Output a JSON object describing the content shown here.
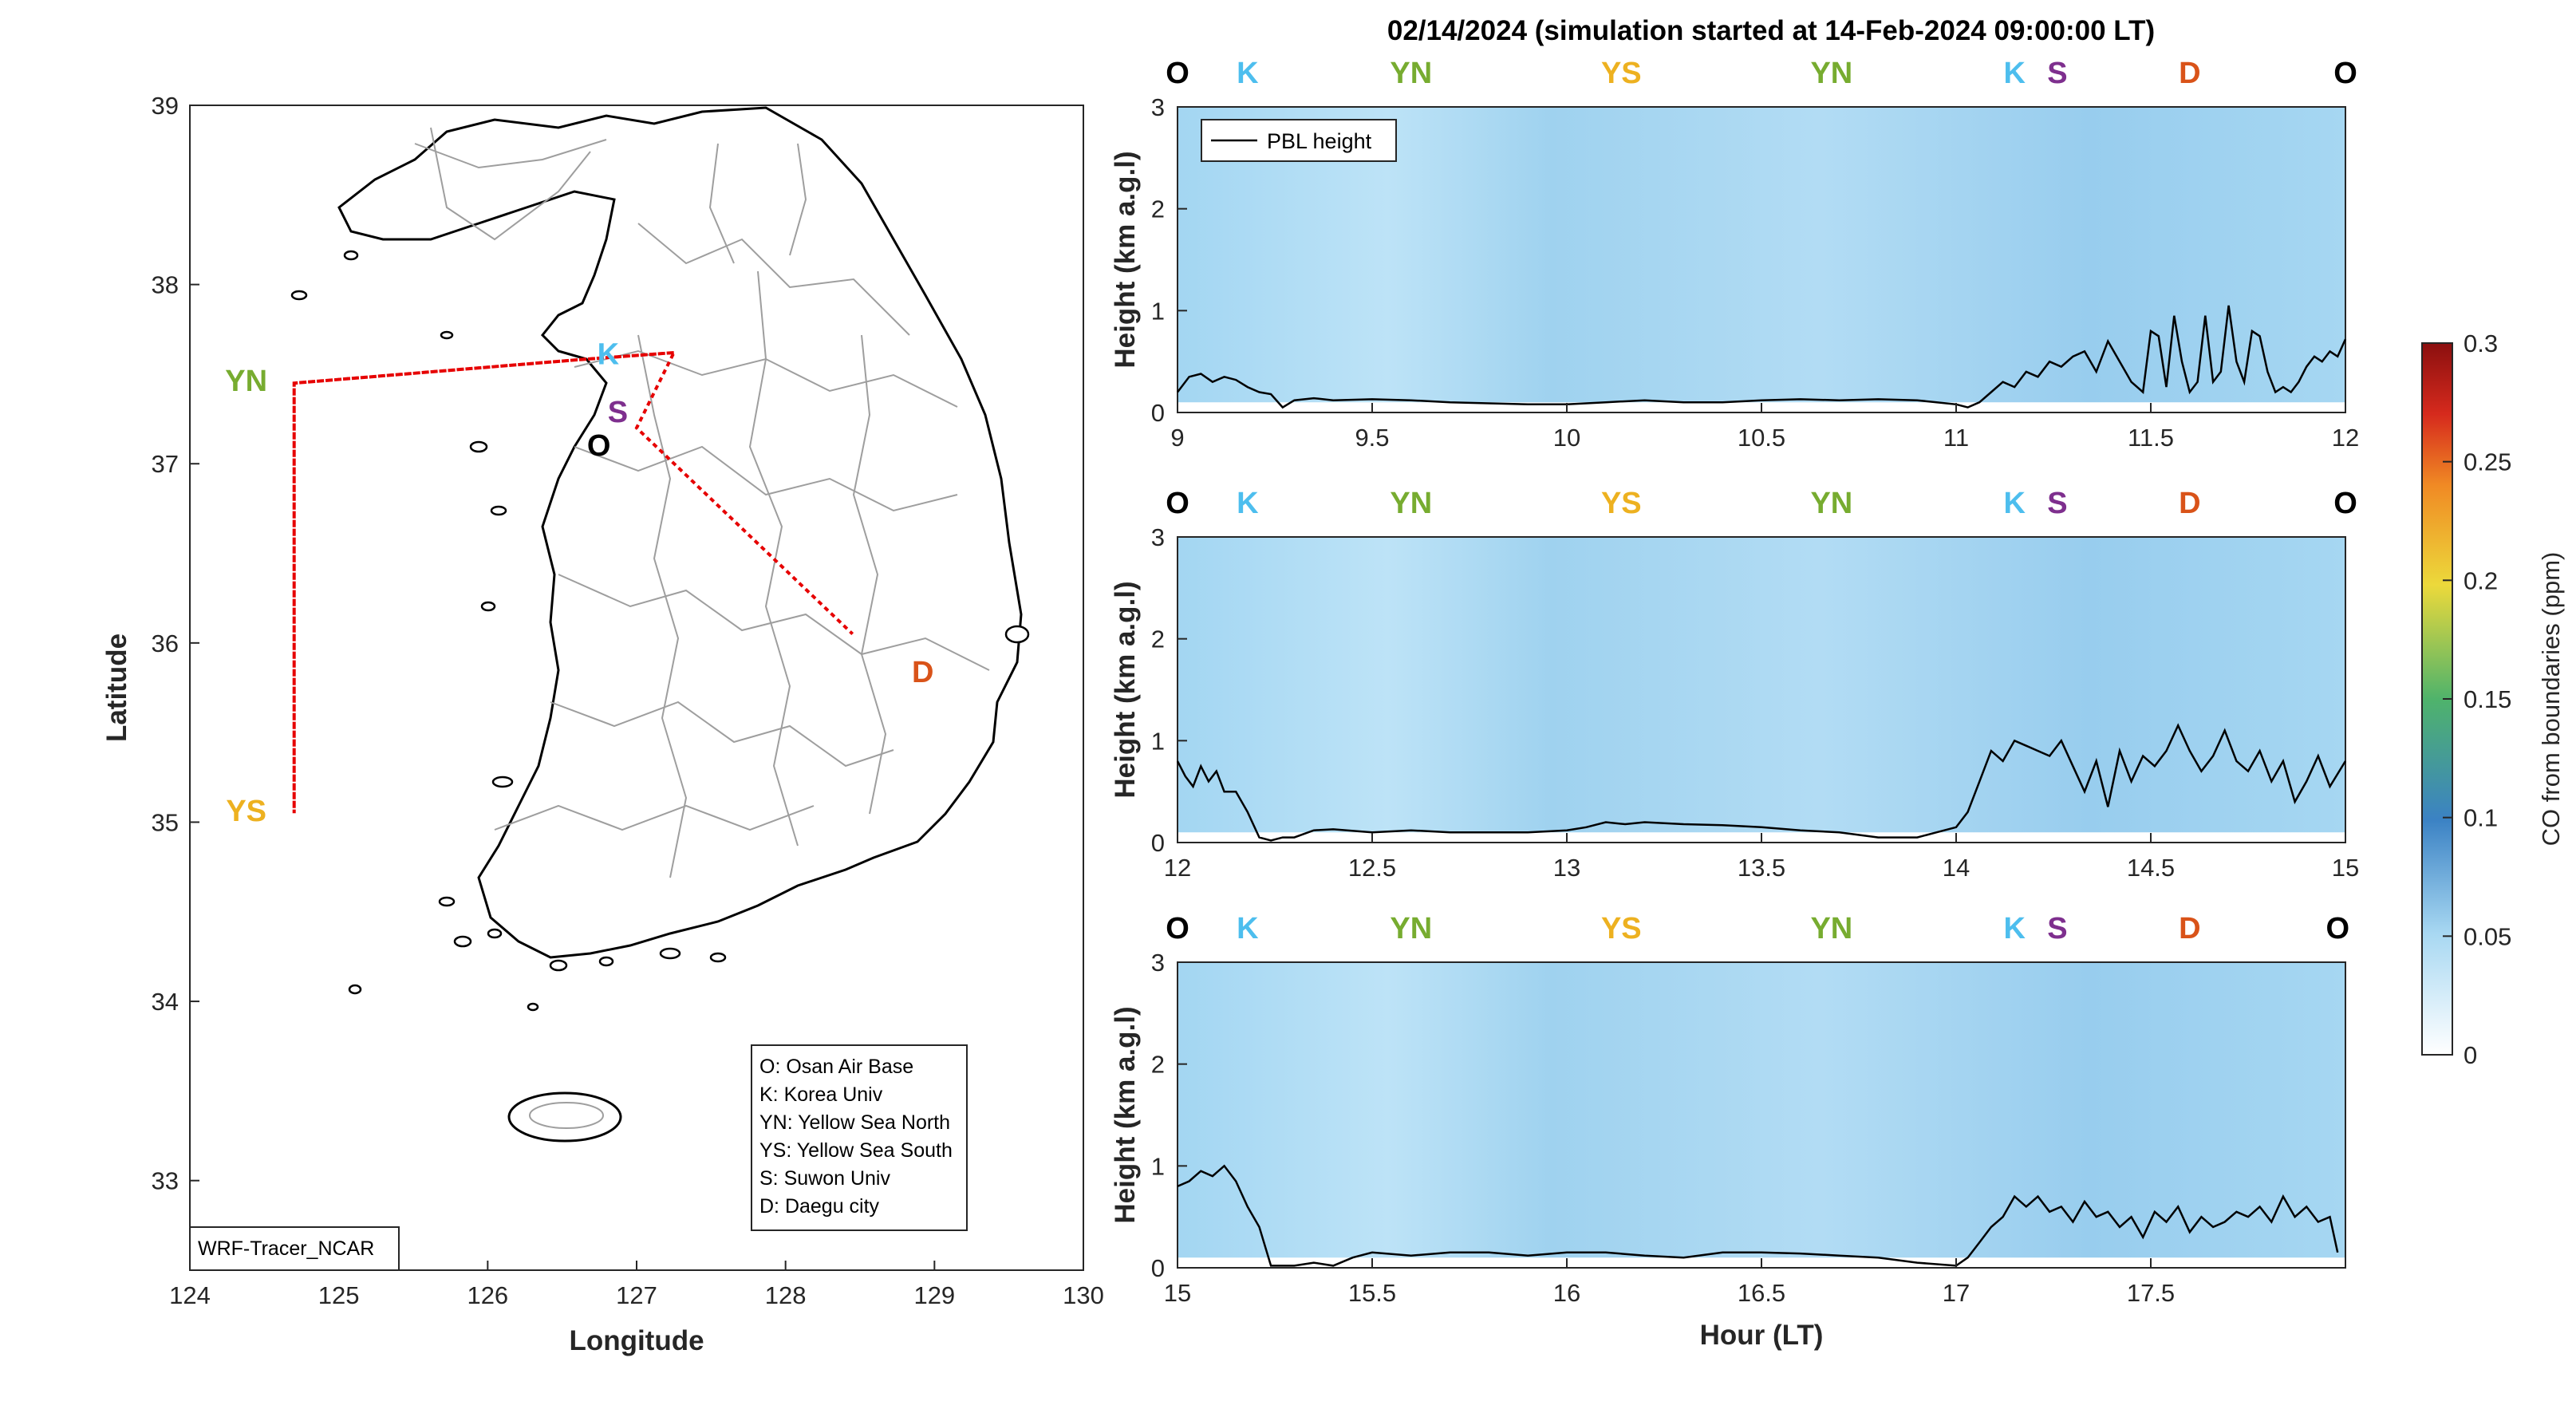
{
  "colors": {
    "O": "#000000",
    "K": "#4DBEEE",
    "YN": "#77AC30",
    "YS": "#EDB120",
    "S": "#7E2F8E",
    "D": "#D95319",
    "route": "#E60000",
    "field": "#A8D8F2",
    "pbl": "#000000"
  },
  "chart_data": [
    {
      "type": "map",
      "xlabel": "Longitude",
      "ylabel": "Latitude",
      "xlim": [
        124,
        130
      ],
      "ylim": [
        32.5,
        39
      ],
      "xticks": [
        "124",
        "125",
        "126",
        "127",
        "128",
        "129",
        "130"
      ],
      "yticks": [
        "33",
        "34",
        "35",
        "36",
        "37",
        "38",
        "39"
      ],
      "sites": [
        {
          "code": "O",
          "name": "Osan Air Base",
          "lon": 126.8,
          "lat": 37.09
        },
        {
          "code": "K",
          "name": "Korea Univ",
          "lon": 127.05,
          "lat": 37.59
        },
        {
          "code": "YN",
          "name": "Yellow Sea North",
          "lon": 124.7,
          "lat": 37.45
        },
        {
          "code": "YS",
          "name": "Yellow Sea South",
          "lon": 124.7,
          "lat": 35.05
        },
        {
          "code": "S",
          "name": "Suwon Univ",
          "lon": 126.97,
          "lat": 37.21
        },
        {
          "code": "D",
          "name": "Daegu city",
          "lon": 128.6,
          "lat": 35.87
        }
      ],
      "route": [
        [
          127.25,
          37.62
        ],
        [
          126.6,
          37.58
        ],
        [
          124.7,
          37.45
        ],
        [
          124.7,
          35.05
        ],
        [
          124.7,
          37.45
        ],
        [
          126.6,
          37.58
        ],
        [
          127.25,
          37.62
        ],
        [
          127.0,
          37.2
        ],
        [
          128.45,
          36.05
        ]
      ],
      "legend_lines": [
        "O: Osan Air Base",
        "K: Korea Univ",
        "YN: Yellow Sea North",
        "YS: Yellow Sea South",
        "S: Suwon Univ",
        "D: Daegu city"
      ],
      "source_label": "WRF-Tracer_NCAR"
    },
    {
      "type": "heatmap",
      "xlim": [
        9,
        12
      ],
      "ylim": [
        0,
        3
      ],
      "xticks": [
        "9",
        "9.5",
        "10",
        "10.5",
        "11",
        "11.5",
        "12"
      ],
      "ylabel": "Height (km a.g.l)",
      "route_labels": [
        {
          "label": "O",
          "x": 9.0
        },
        {
          "label": "K",
          "x": 9.18
        },
        {
          "label": "YN",
          "x": 9.6
        },
        {
          "label": "YS",
          "x": 10.14
        },
        {
          "label": "YN",
          "x": 10.68
        },
        {
          "label": "K",
          "x": 11.15
        },
        {
          "label": "S",
          "x": 11.26
        },
        {
          "label": "D",
          "x": 11.6
        },
        {
          "label": "O",
          "x": 12.0
        }
      ],
      "series": [
        {
          "name": "PBL height",
          "x": [
            9,
            9.03,
            9.06,
            9.09,
            9.12,
            9.15,
            9.18,
            9.21,
            9.24,
            9.27,
            9.3,
            9.35,
            9.4,
            9.5,
            9.6,
            9.7,
            9.8,
            9.9,
            10,
            10.1,
            10.2,
            10.3,
            10.4,
            10.5,
            10.6,
            10.7,
            10.8,
            10.9,
            10.95,
            11,
            11.03,
            11.06,
            11.09,
            11.12,
            11.15,
            11.18,
            11.21,
            11.24,
            11.27,
            11.3,
            11.33,
            11.36,
            11.39,
            11.42,
            11.45,
            11.48,
            11.5,
            11.52,
            11.54,
            11.56,
            11.58,
            11.6,
            11.62,
            11.64,
            11.66,
            11.68,
            11.7,
            11.72,
            11.74,
            11.76,
            11.78,
            11.8,
            11.82,
            11.84,
            11.86,
            11.88,
            11.9,
            11.92,
            11.94,
            11.96,
            11.98,
            12
          ],
          "y": [
            0.2,
            0.35,
            0.38,
            0.3,
            0.35,
            0.32,
            0.25,
            0.2,
            0.18,
            0.05,
            0.12,
            0.14,
            0.12,
            0.13,
            0.12,
            0.1,
            0.09,
            0.08,
            0.08,
            0.1,
            0.12,
            0.1,
            0.1,
            0.12,
            0.13,
            0.12,
            0.13,
            0.12,
            0.1,
            0.08,
            0.05,
            0.1,
            0.2,
            0.3,
            0.25,
            0.4,
            0.35,
            0.5,
            0.45,
            0.55,
            0.6,
            0.4,
            0.7,
            0.5,
            0.3,
            0.2,
            0.8,
            0.75,
            0.25,
            0.95,
            0.5,
            0.2,
            0.3,
            0.95,
            0.3,
            0.4,
            1.05,
            0.5,
            0.3,
            0.8,
            0.75,
            0.4,
            0.2,
            0.25,
            0.2,
            0.3,
            0.45,
            0.55,
            0.5,
            0.6,
            0.55,
            0.72
          ]
        }
      ]
    },
    {
      "type": "heatmap",
      "xlim": [
        12,
        15
      ],
      "ylim": [
        0,
        3
      ],
      "xticks": [
        "12",
        "12.5",
        "13",
        "13.5",
        "14",
        "14.5",
        "15"
      ],
      "ylabel": "Height (km a.g.l)",
      "route_labels": [
        {
          "label": "O",
          "x": 12.0
        },
        {
          "label": "K",
          "x": 12.18
        },
        {
          "label": "YN",
          "x": 12.6
        },
        {
          "label": "YS",
          "x": 13.14
        },
        {
          "label": "YN",
          "x": 13.68
        },
        {
          "label": "K",
          "x": 14.15
        },
        {
          "label": "S",
          "x": 14.26
        },
        {
          "label": "D",
          "x": 14.6
        },
        {
          "label": "O",
          "x": 15.0
        }
      ],
      "series": [
        {
          "name": "PBL height",
          "x": [
            12,
            12.02,
            12.04,
            12.06,
            12.08,
            12.1,
            12.12,
            12.15,
            12.18,
            12.21,
            12.24,
            12.27,
            12.3,
            12.35,
            12.4,
            12.5,
            12.6,
            12.7,
            12.8,
            12.9,
            13,
            13.05,
            13.1,
            13.15,
            13.2,
            13.3,
            13.4,
            13.5,
            13.6,
            13.7,
            13.8,
            13.9,
            13.95,
            14,
            14.03,
            14.06,
            14.09,
            14.12,
            14.15,
            14.18,
            14.21,
            14.24,
            14.27,
            14.3,
            14.33,
            14.36,
            14.39,
            14.42,
            14.45,
            14.48,
            14.51,
            14.54,
            14.57,
            14.6,
            14.63,
            14.66,
            14.69,
            14.72,
            14.75,
            14.78,
            14.81,
            14.84,
            14.87,
            14.9,
            14.93,
            14.96,
            15
          ],
          "y": [
            0.8,
            0.65,
            0.55,
            0.75,
            0.6,
            0.7,
            0.5,
            0.5,
            0.3,
            0.05,
            0.02,
            0.05,
            0.05,
            0.12,
            0.13,
            0.1,
            0.12,
            0.1,
            0.1,
            0.1,
            0.12,
            0.15,
            0.2,
            0.18,
            0.2,
            0.18,
            0.17,
            0.15,
            0.12,
            0.1,
            0.05,
            0.05,
            0.1,
            0.15,
            0.3,
            0.6,
            0.9,
            0.8,
            1.0,
            0.95,
            0.9,
            0.85,
            1.0,
            0.75,
            0.5,
            0.8,
            0.35,
            0.9,
            0.6,
            0.85,
            0.75,
            0.9,
            1.15,
            0.9,
            0.7,
            0.85,
            1.1,
            0.8,
            0.7,
            0.9,
            0.6,
            0.8,
            0.4,
            0.6,
            0.85,
            0.55,
            0.8
          ]
        }
      ]
    },
    {
      "type": "heatmap",
      "xlim": [
        15,
        18
      ],
      "ylim": [
        0,
        3
      ],
      "xticks": [
        "15",
        "15.5",
        "16",
        "16.5",
        "17",
        "17.5"
      ],
      "ylabel": "Height (km a.g.l)",
      "xlabel": "Hour (LT)",
      "route_labels": [
        {
          "label": "O",
          "x": 15.0
        },
        {
          "label": "K",
          "x": 15.18
        },
        {
          "label": "YN",
          "x": 15.6
        },
        {
          "label": "YS",
          "x": 16.14
        },
        {
          "label": "YN",
          "x": 16.68
        },
        {
          "label": "K",
          "x": 17.15
        },
        {
          "label": "S",
          "x": 17.26
        },
        {
          "label": "D",
          "x": 17.6
        },
        {
          "label": "O",
          "x": 17.98
        }
      ],
      "series": [
        {
          "name": "PBL height",
          "x": [
            15,
            15.03,
            15.06,
            15.09,
            15.12,
            15.15,
            15.18,
            15.21,
            15.24,
            15.27,
            15.3,
            15.35,
            15.4,
            15.45,
            15.5,
            15.6,
            15.7,
            15.8,
            15.9,
            16,
            16.1,
            16.2,
            16.3,
            16.4,
            16.5,
            16.6,
            16.7,
            16.8,
            16.9,
            17,
            17.03,
            17.06,
            17.09,
            17.12,
            17.15,
            17.18,
            17.21,
            17.24,
            17.27,
            17.3,
            17.33,
            17.36,
            17.39,
            17.42,
            17.45,
            17.48,
            17.51,
            17.54,
            17.57,
            17.6,
            17.63,
            17.66,
            17.69,
            17.72,
            17.75,
            17.78,
            17.81,
            17.84,
            17.87,
            17.9,
            17.93,
            17.96,
            17.98
          ],
          "y": [
            0.8,
            0.85,
            0.95,
            0.9,
            1.0,
            0.85,
            0.6,
            0.4,
            0.02,
            0.02,
            0.02,
            0.05,
            0.02,
            0.1,
            0.15,
            0.12,
            0.15,
            0.15,
            0.12,
            0.15,
            0.15,
            0.12,
            0.1,
            0.15,
            0.15,
            0.14,
            0.12,
            0.1,
            0.05,
            0.02,
            0.1,
            0.25,
            0.4,
            0.5,
            0.7,
            0.6,
            0.7,
            0.55,
            0.6,
            0.45,
            0.65,
            0.5,
            0.55,
            0.4,
            0.5,
            0.3,
            0.55,
            0.45,
            0.6,
            0.35,
            0.5,
            0.4,
            0.45,
            0.55,
            0.5,
            0.6,
            0.45,
            0.7,
            0.5,
            0.6,
            0.45,
            0.5,
            0.15
          ]
        }
      ]
    }
  ],
  "panels_title": "02/14/2024 (simulation started at 14-Feb-2024 09:00:00 LT)",
  "pbl_legend": "PBL height",
  "colorbar": {
    "label": "CO from boundaries (ppm)",
    "ticks": [
      "0",
      "0.05",
      "0.1",
      "0.15",
      "0.2",
      "0.25",
      "0.3"
    ],
    "range": [
      0,
      0.3
    ],
    "colormap": [
      "#ffffff",
      "#a8d8f2",
      "#3b82c4",
      "#4fb36b",
      "#ecd93b",
      "#f08a24",
      "#d62a1d",
      "#8b0f0f"
    ]
  }
}
